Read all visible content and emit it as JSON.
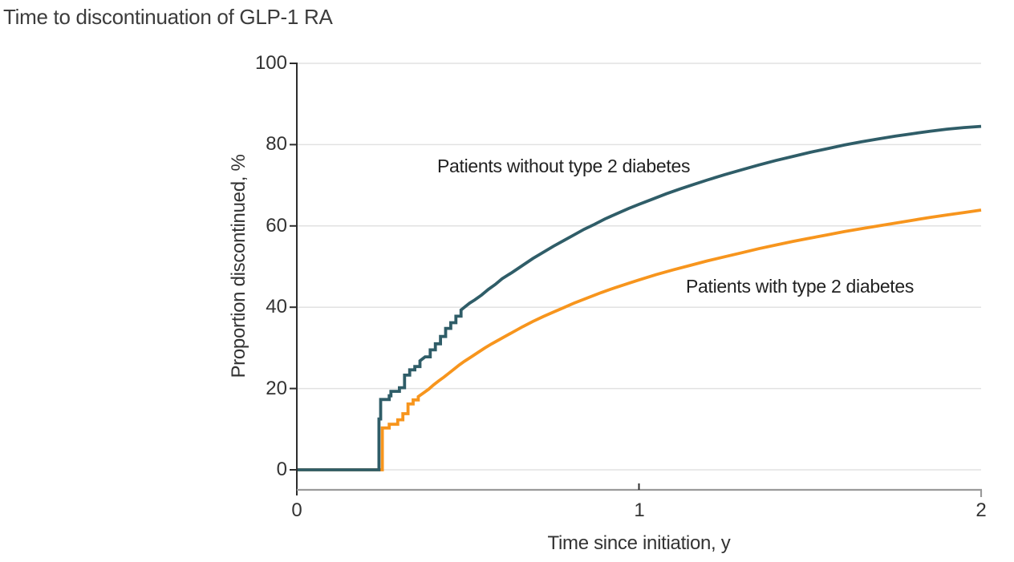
{
  "chart_data": {
    "type": "line",
    "style": "step-after",
    "title": "Time to discontinuation of GLP-1 RA",
    "xlabel": "Time since initiation, y",
    "ylabel": "Proportion discontinued, %",
    "xlim": [
      0,
      2
    ],
    "ylim": [
      0,
      100
    ],
    "xticks": [
      0,
      1,
      2
    ],
    "yticks": [
      0,
      20,
      40,
      60,
      80,
      100
    ],
    "grid": "horizontal",
    "legend_position": "inline-annotations",
    "colors": {
      "grid": "#e2e2e2",
      "baseline": "#9a9a9a",
      "axis": "#2d2d2d",
      "text": "#333333"
    },
    "series": [
      {
        "name": "Patients without type 2 diabetes",
        "color": "#2f5d68",
        "points": [
          [
            0,
            0
          ],
          [
            0.24,
            0
          ],
          [
            0.24,
            12.5
          ],
          [
            0.245,
            12.5
          ],
          [
            0.245,
            17.3
          ],
          [
            0.27,
            17.3
          ],
          [
            0.27,
            18.2
          ],
          [
            0.275,
            18.2
          ],
          [
            0.275,
            19.3
          ],
          [
            0.3,
            19.3
          ],
          [
            0.3,
            20.2
          ],
          [
            0.315,
            20.2
          ],
          [
            0.315,
            23.3
          ],
          [
            0.33,
            23.3
          ],
          [
            0.33,
            24.6
          ],
          [
            0.345,
            24.6
          ],
          [
            0.345,
            25.4
          ],
          [
            0.36,
            26.8
          ],
          [
            0.375,
            27.8
          ],
          [
            0.39,
            29.5
          ],
          [
            0.405,
            31.0
          ],
          [
            0.42,
            32.8
          ],
          [
            0.435,
            34.8
          ],
          [
            0.45,
            36.2
          ],
          [
            0.465,
            37.8
          ],
          [
            0.48,
            39.3
          ],
          [
            0.49,
            40.0
          ],
          [
            0.505,
            41.0
          ],
          [
            0.52,
            41.8
          ],
          [
            0.54,
            43.0
          ],
          [
            0.56,
            44.4
          ],
          [
            0.58,
            45.6
          ],
          [
            0.6,
            47.0
          ],
          [
            0.63,
            48.6
          ],
          [
            0.66,
            50.3
          ],
          [
            0.69,
            52.0
          ],
          [
            0.72,
            53.5
          ],
          [
            0.75,
            55.0
          ],
          [
            0.78,
            56.4
          ],
          [
            0.81,
            57.8
          ],
          [
            0.84,
            59.2
          ],
          [
            0.87,
            60.4
          ],
          [
            0.9,
            61.7
          ],
          [
            0.94,
            63.2
          ],
          [
            0.97,
            64.3
          ],
          [
            1.0,
            65.3
          ],
          [
            1.04,
            66.6
          ],
          [
            1.08,
            67.9
          ],
          [
            1.12,
            69.1
          ],
          [
            1.16,
            70.2
          ],
          [
            1.2,
            71.3
          ],
          [
            1.25,
            72.6
          ],
          [
            1.3,
            73.8
          ],
          [
            1.35,
            75.0
          ],
          [
            1.4,
            76.1
          ],
          [
            1.45,
            77.1
          ],
          [
            1.5,
            78.1
          ],
          [
            1.55,
            79.0
          ],
          [
            1.6,
            79.9
          ],
          [
            1.65,
            80.7
          ],
          [
            1.7,
            81.4
          ],
          [
            1.75,
            82.1
          ],
          [
            1.8,
            82.7
          ],
          [
            1.85,
            83.3
          ],
          [
            1.9,
            83.8
          ],
          [
            1.95,
            84.2
          ],
          [
            2.0,
            84.5
          ]
        ]
      },
      {
        "name": "Patients with type 2 diabetes",
        "color": "#f7951d",
        "points": [
          [
            0,
            0
          ],
          [
            0.25,
            0
          ],
          [
            0.25,
            10.3
          ],
          [
            0.27,
            10.3
          ],
          [
            0.27,
            11.2
          ],
          [
            0.295,
            11.2
          ],
          [
            0.295,
            12.3
          ],
          [
            0.31,
            12.3
          ],
          [
            0.31,
            13.8
          ],
          [
            0.325,
            13.8
          ],
          [
            0.325,
            16.2
          ],
          [
            0.34,
            16.2
          ],
          [
            0.34,
            17.2
          ],
          [
            0.355,
            17.2
          ],
          [
            0.355,
            18.0
          ],
          [
            0.37,
            18.9
          ],
          [
            0.385,
            19.8
          ],
          [
            0.4,
            20.9
          ],
          [
            0.415,
            21.9
          ],
          [
            0.43,
            22.8
          ],
          [
            0.445,
            23.8
          ],
          [
            0.46,
            24.8
          ],
          [
            0.475,
            25.8
          ],
          [
            0.49,
            26.7
          ],
          [
            0.51,
            27.8
          ],
          [
            0.53,
            28.9
          ],
          [
            0.55,
            30.0
          ],
          [
            0.57,
            31.0
          ],
          [
            0.6,
            32.4
          ],
          [
            0.63,
            33.8
          ],
          [
            0.66,
            35.2
          ],
          [
            0.69,
            36.5
          ],
          [
            0.72,
            37.7
          ],
          [
            0.75,
            38.8
          ],
          [
            0.78,
            39.9
          ],
          [
            0.81,
            41.0
          ],
          [
            0.85,
            42.3
          ],
          [
            0.89,
            43.6
          ],
          [
            0.93,
            44.8
          ],
          [
            0.97,
            45.9
          ],
          [
            1.0,
            46.7
          ],
          [
            1.05,
            48.0
          ],
          [
            1.1,
            49.2
          ],
          [
            1.15,
            50.3
          ],
          [
            1.2,
            51.4
          ],
          [
            1.25,
            52.4
          ],
          [
            1.3,
            53.4
          ],
          [
            1.35,
            54.4
          ],
          [
            1.4,
            55.3
          ],
          [
            1.45,
            56.2
          ],
          [
            1.5,
            57.0
          ],
          [
            1.55,
            57.8
          ],
          [
            1.6,
            58.6
          ],
          [
            1.65,
            59.3
          ],
          [
            1.7,
            60.0
          ],
          [
            1.75,
            60.7
          ],
          [
            1.8,
            61.4
          ],
          [
            1.85,
            62.1
          ],
          [
            1.9,
            62.7
          ],
          [
            1.95,
            63.3
          ],
          [
            2.0,
            63.9
          ]
        ]
      }
    ],
    "annotations": [
      {
        "text": "Patients without type 2 diabetes"
      },
      {
        "text": "Patients with type 2 diabetes"
      }
    ]
  }
}
